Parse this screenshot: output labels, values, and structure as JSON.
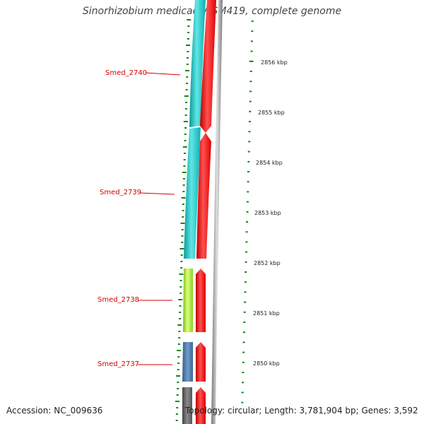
{
  "header": {
    "title": "Sinorhizobium medicae WSM419, complete genome"
  },
  "footer": {
    "accession": "Accession: NC_009636",
    "topology": "Topology: circular; Length: 3,781,904 bp; Genes: 3,592"
  },
  "genes": [
    {
      "locus_tag": "Smed_2740",
      "color": "#20c8c8"
    },
    {
      "locus_tag": "Smed_2739",
      "color": "#20c8c8"
    },
    {
      "locus_tag": "Smed_2738",
      "color": "#a6e22e"
    },
    {
      "locus_tag": "Smed_2737",
      "color": "#4a7aa8"
    }
  ],
  "scale": {
    "ticks": [
      "2856 kbp",
      "2855 kbp",
      "2854 kbp",
      "2853 kbp",
      "2852 kbp",
      "2851 kbp",
      "2850 kbp"
    ]
  },
  "colors": {
    "forward_cds": "#20c8c8",
    "reverse_cds": "#ff0000",
    "backbone": "#888888",
    "gc_ticks": "#118811",
    "label": "#d40000"
  }
}
